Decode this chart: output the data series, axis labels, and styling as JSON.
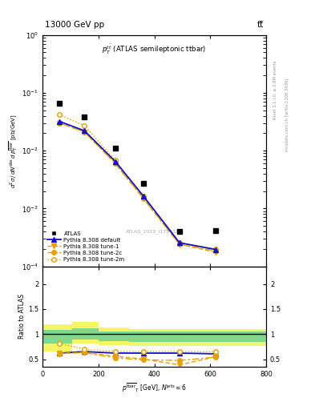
{
  "title_top": "13000 GeV pp",
  "title_right": "tt̅",
  "plot_title": "$p_T^{t\\bar{t}}$ (ATLAS semileptonic ttbar)",
  "ylabel_main": "$d^2\\sigma\\,/\\,dN^{\\mathrm{obs}}\\,d\\,p^{\\overline{\\mathrm{tbar}}}_{T}$ [pb/GeV]",
  "ylabel_ratio": "Ratio to ATLAS",
  "xlabel": "$p^{\\overline{\\mathrm{tbar}}}{}_{T}$ [GeV], $N^{\\mathrm{jets}} = 6$",
  "rivet_label": "Rivet 3.1.10, ≥ 2.8M events",
  "inspire_label": "mcplots.cern.ch [arXiv:1306.3436]",
  "atlas_label": "ATLAS_2019_I1750330",
  "x_data": [
    60,
    150,
    260,
    360,
    490,
    620
  ],
  "atlas_y": [
    0.065,
    0.038,
    0.011,
    0.0027,
    0.0004,
    0.00042
  ],
  "pythia_default_y": [
    0.032,
    0.022,
    0.0065,
    0.00165,
    0.000255,
    0.000195
  ],
  "pythia_tune1_y": [
    0.03,
    0.021,
    0.006,
    0.0015,
    0.00024,
    0.000175
  ],
  "pythia_tune2c_y": [
    0.03,
    0.021,
    0.006,
    0.0015,
    0.00024,
    0.000185
  ],
  "pythia_tune2m_y": [
    0.042,
    0.027,
    0.0068,
    0.00165,
    0.000255,
    0.0002
  ],
  "ratio_default": [
    0.625,
    0.655,
    0.625,
    0.625,
    0.625,
    0.61
  ],
  "ratio_tune1": [
    0.62,
    0.64,
    0.56,
    0.51,
    0.39,
    0.555
  ],
  "ratio_tune2c": [
    0.615,
    0.635,
    0.53,
    0.49,
    0.48,
    0.545
  ],
  "ratio_tune2m": [
    0.82,
    0.7,
    0.66,
    0.66,
    0.66,
    0.65
  ],
  "xbins_ratio": [
    0,
    105,
    200,
    310,
    420,
    565,
    800
  ],
  "y_yellow_lo": [
    0.65,
    0.82,
    0.78,
    0.77,
    0.77,
    0.77
  ],
  "y_yellow_hi": [
    1.2,
    1.25,
    1.13,
    1.1,
    1.1,
    1.1
  ],
  "y_green_lo": [
    0.82,
    0.9,
    0.87,
    0.85,
    0.85,
    0.85
  ],
  "y_green_hi": [
    1.09,
    1.12,
    1.06,
    1.05,
    1.05,
    1.05
  ],
  "color_atlas": "#000000",
  "color_default": "#1111cc",
  "color_orange": "#E8A000",
  "color_green_band": "#7FD98A",
  "color_yellow_band": "#F5F566",
  "xlim": [
    0,
    800
  ],
  "ylim_main_lo": 0.0001,
  "ylim_main_hi": 1.0,
  "ylim_ratio": [
    0.35,
    2.35
  ]
}
